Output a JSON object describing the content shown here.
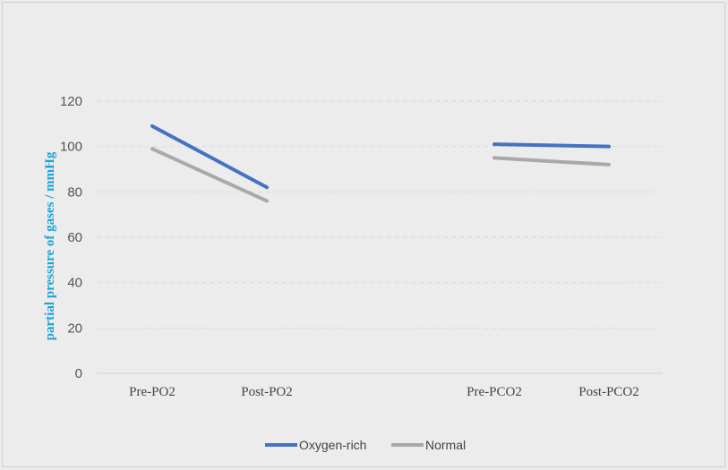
{
  "chart_data": {
    "type": "line",
    "title": "",
    "xlabel": "",
    "ylabel": "partial pressure of gases / mmHg",
    "ylabel_color": "#1aa3d9",
    "ylim": [
      0,
      120
    ],
    "yticks": [
      "0",
      "20",
      "40",
      "60",
      "80",
      "100",
      "120"
    ],
    "grid": true,
    "legend_position": "bottom",
    "categories": [
      "Pre-PO2",
      "Post-PO2",
      "Pre-PCO2",
      "Post-PCO2"
    ],
    "segments": [
      [
        0,
        1
      ],
      [
        2,
        3
      ]
    ],
    "series": [
      {
        "name": "Oxygen-rich",
        "color": "#4472c4",
        "values": [
          109,
          82,
          101,
          100
        ]
      },
      {
        "name": "Normal",
        "color": "#a9a9a9",
        "values": [
          99,
          76,
          95,
          92
        ]
      }
    ]
  }
}
